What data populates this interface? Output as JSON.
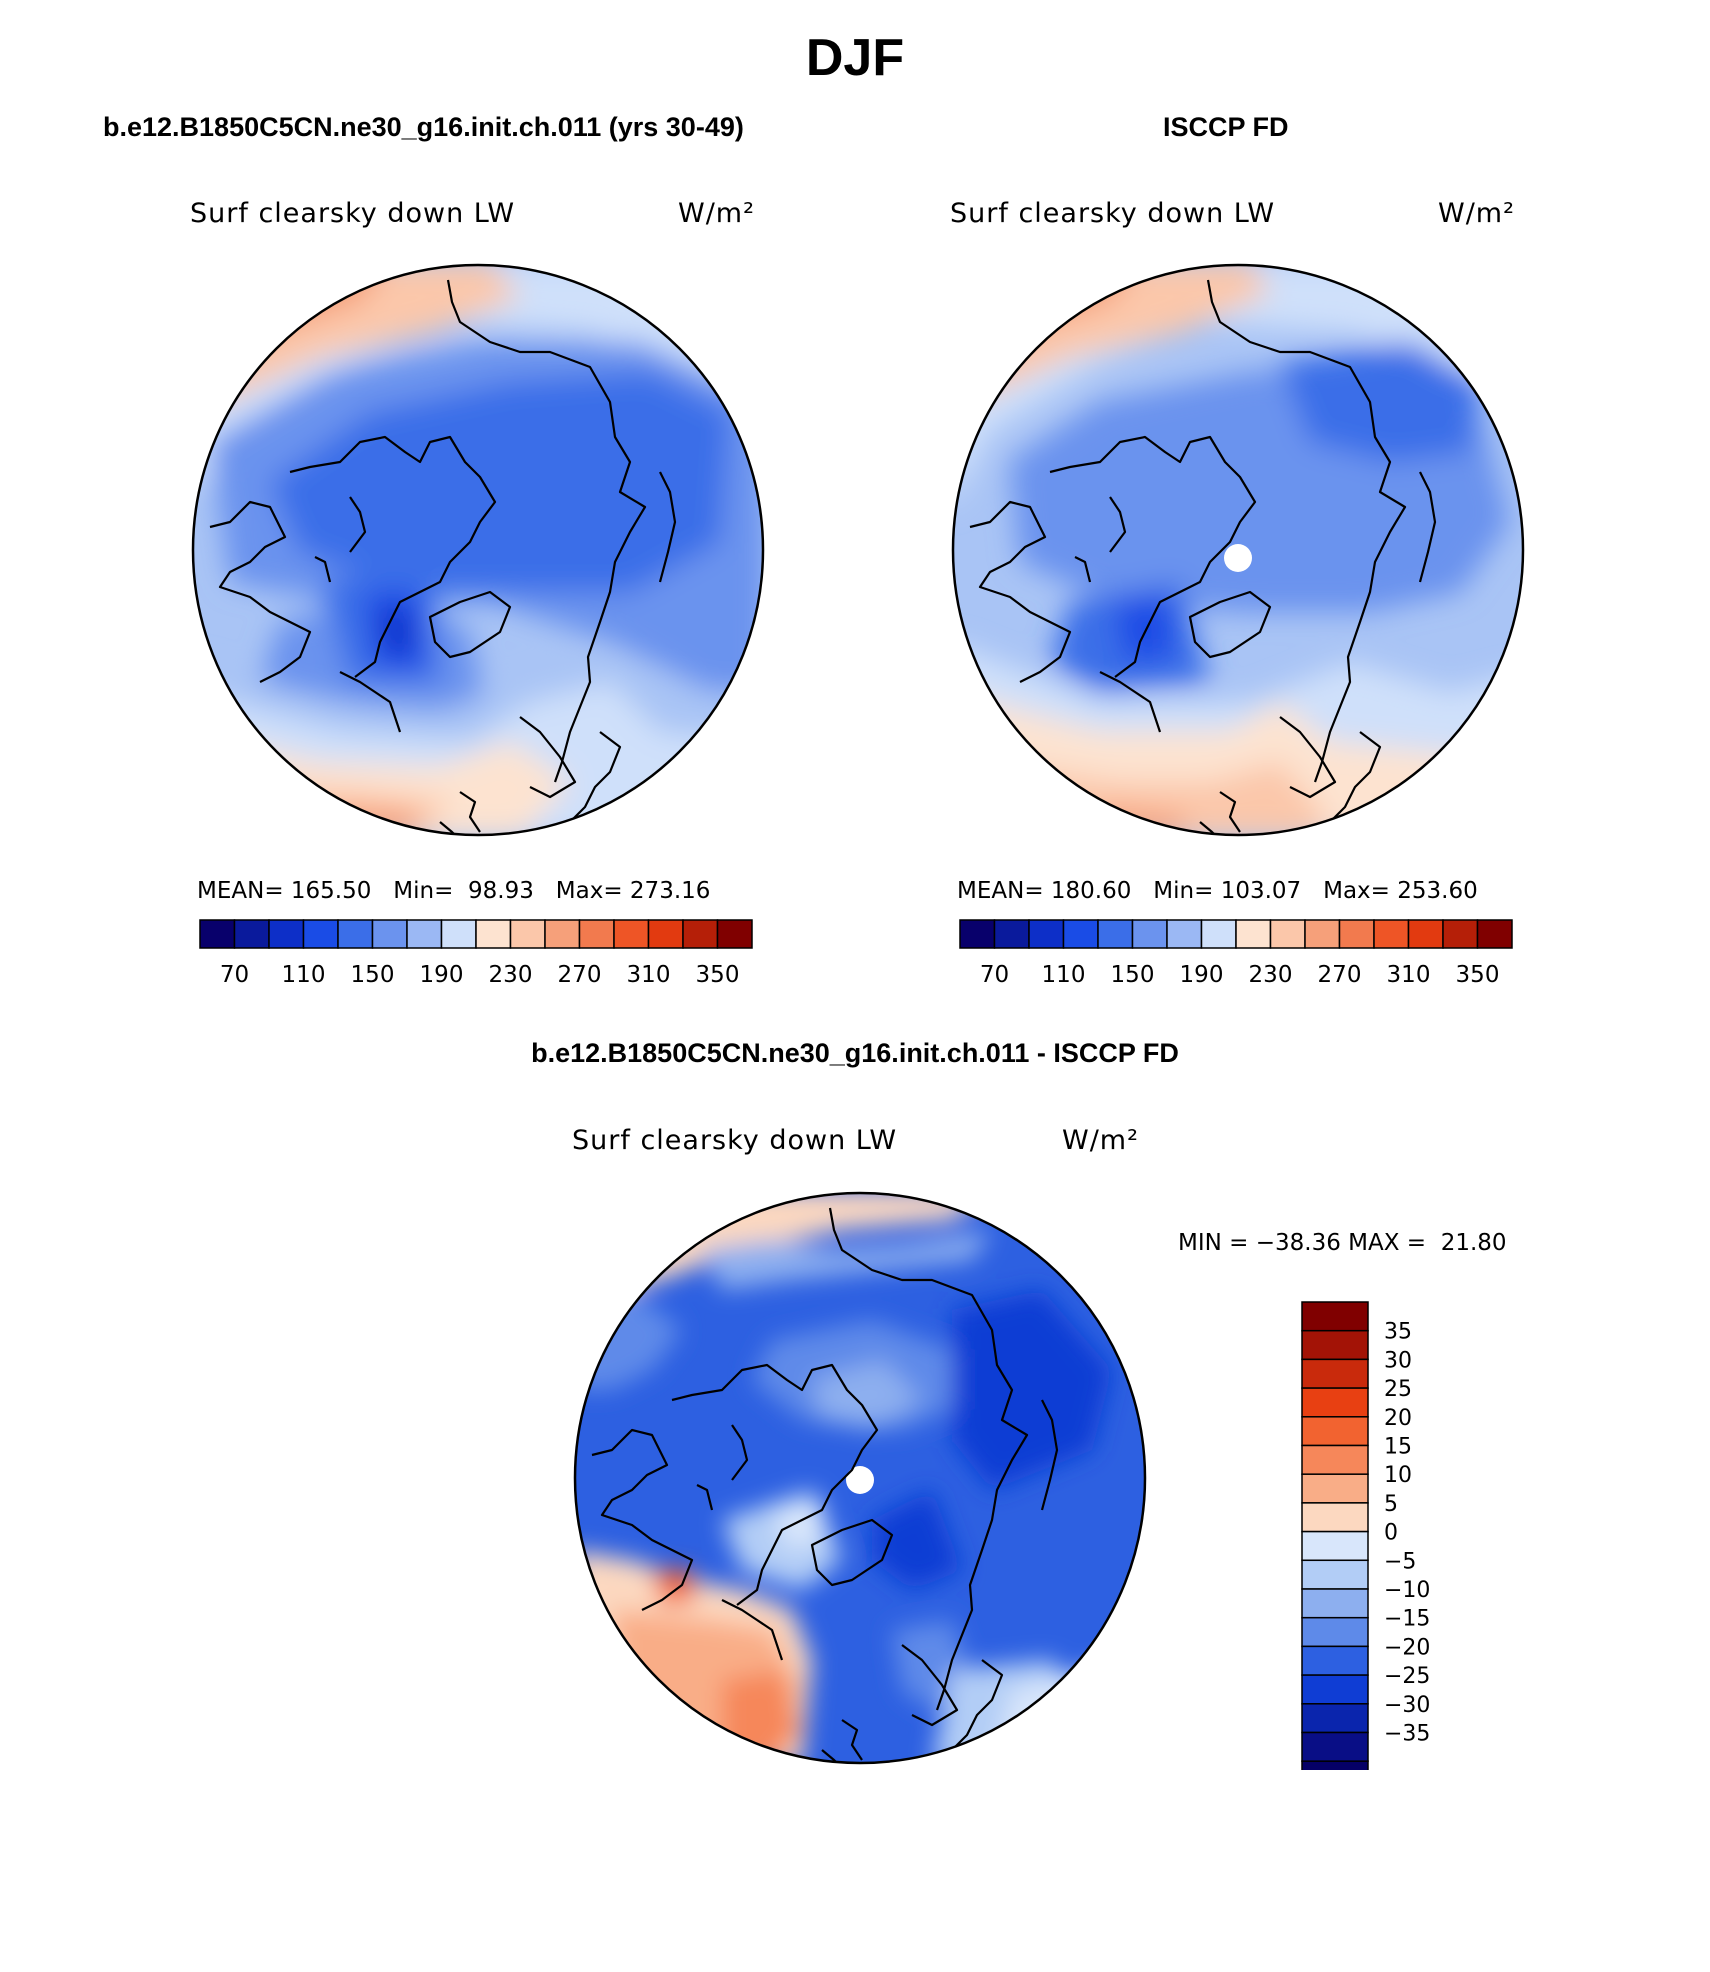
{
  "title": "DJF",
  "panels": [
    {
      "case_title": "b.e12.B1850C5CN.ne30_g16.init.ch.011 (yrs 30-49)",
      "variable": "Surf clearsky down LW",
      "units": "W/m²",
      "stats": "MEAN= 165.50   Min=  98.93   Max= 273.16"
    },
    {
      "case_title": "ISCCP FD",
      "variable": "Surf clearsky down LW",
      "units": "W/m²",
      "stats": "MEAN= 180.60   Min= 103.07   Max= 253.60"
    },
    {
      "case_title": "b.e12.B1850C5CN.ne30_g16.init.ch.011 - ISCCP FD",
      "variable": "Surf clearsky down LW",
      "units": "W/m²",
      "stats": "MIN = −38.36 MAX =  21.80"
    }
  ],
  "abs_colorbar": {
    "colors": [
      "#08006b",
      "#0a1a9c",
      "#0d2fc8",
      "#1a4ce6",
      "#3b6ee8",
      "#6b93ee",
      "#9bb8f4",
      "#cfe0fa",
      "#fde3d0",
      "#fbc7aa",
      "#f6a07a",
      "#f27a4e",
      "#ee5526",
      "#e23a10",
      "#b51f08",
      "#800000"
    ],
    "labels": [
      "70",
      "110",
      "150",
      "190",
      "230",
      "270",
      "310",
      "350"
    ]
  },
  "diff_colorbar": {
    "colors": [
      "#800000",
      "#a31306",
      "#c92a0c",
      "#e84012",
      "#f26330",
      "#f6875a",
      "#f9ad87",
      "#fcd8c0",
      "#d8e6fb",
      "#b2cdf6",
      "#8dafef",
      "#5e8ae9",
      "#2d60e1",
      "#0f3dd4",
      "#0a25ad",
      "#090e86",
      "#050066"
    ],
    "labels": [
      "35",
      "30",
      "25",
      "20",
      "15",
      "10",
      "5",
      "0",
      "−5",
      "−10",
      "−15",
      "−20",
      "−25",
      "−30",
      "−35"
    ]
  }
}
